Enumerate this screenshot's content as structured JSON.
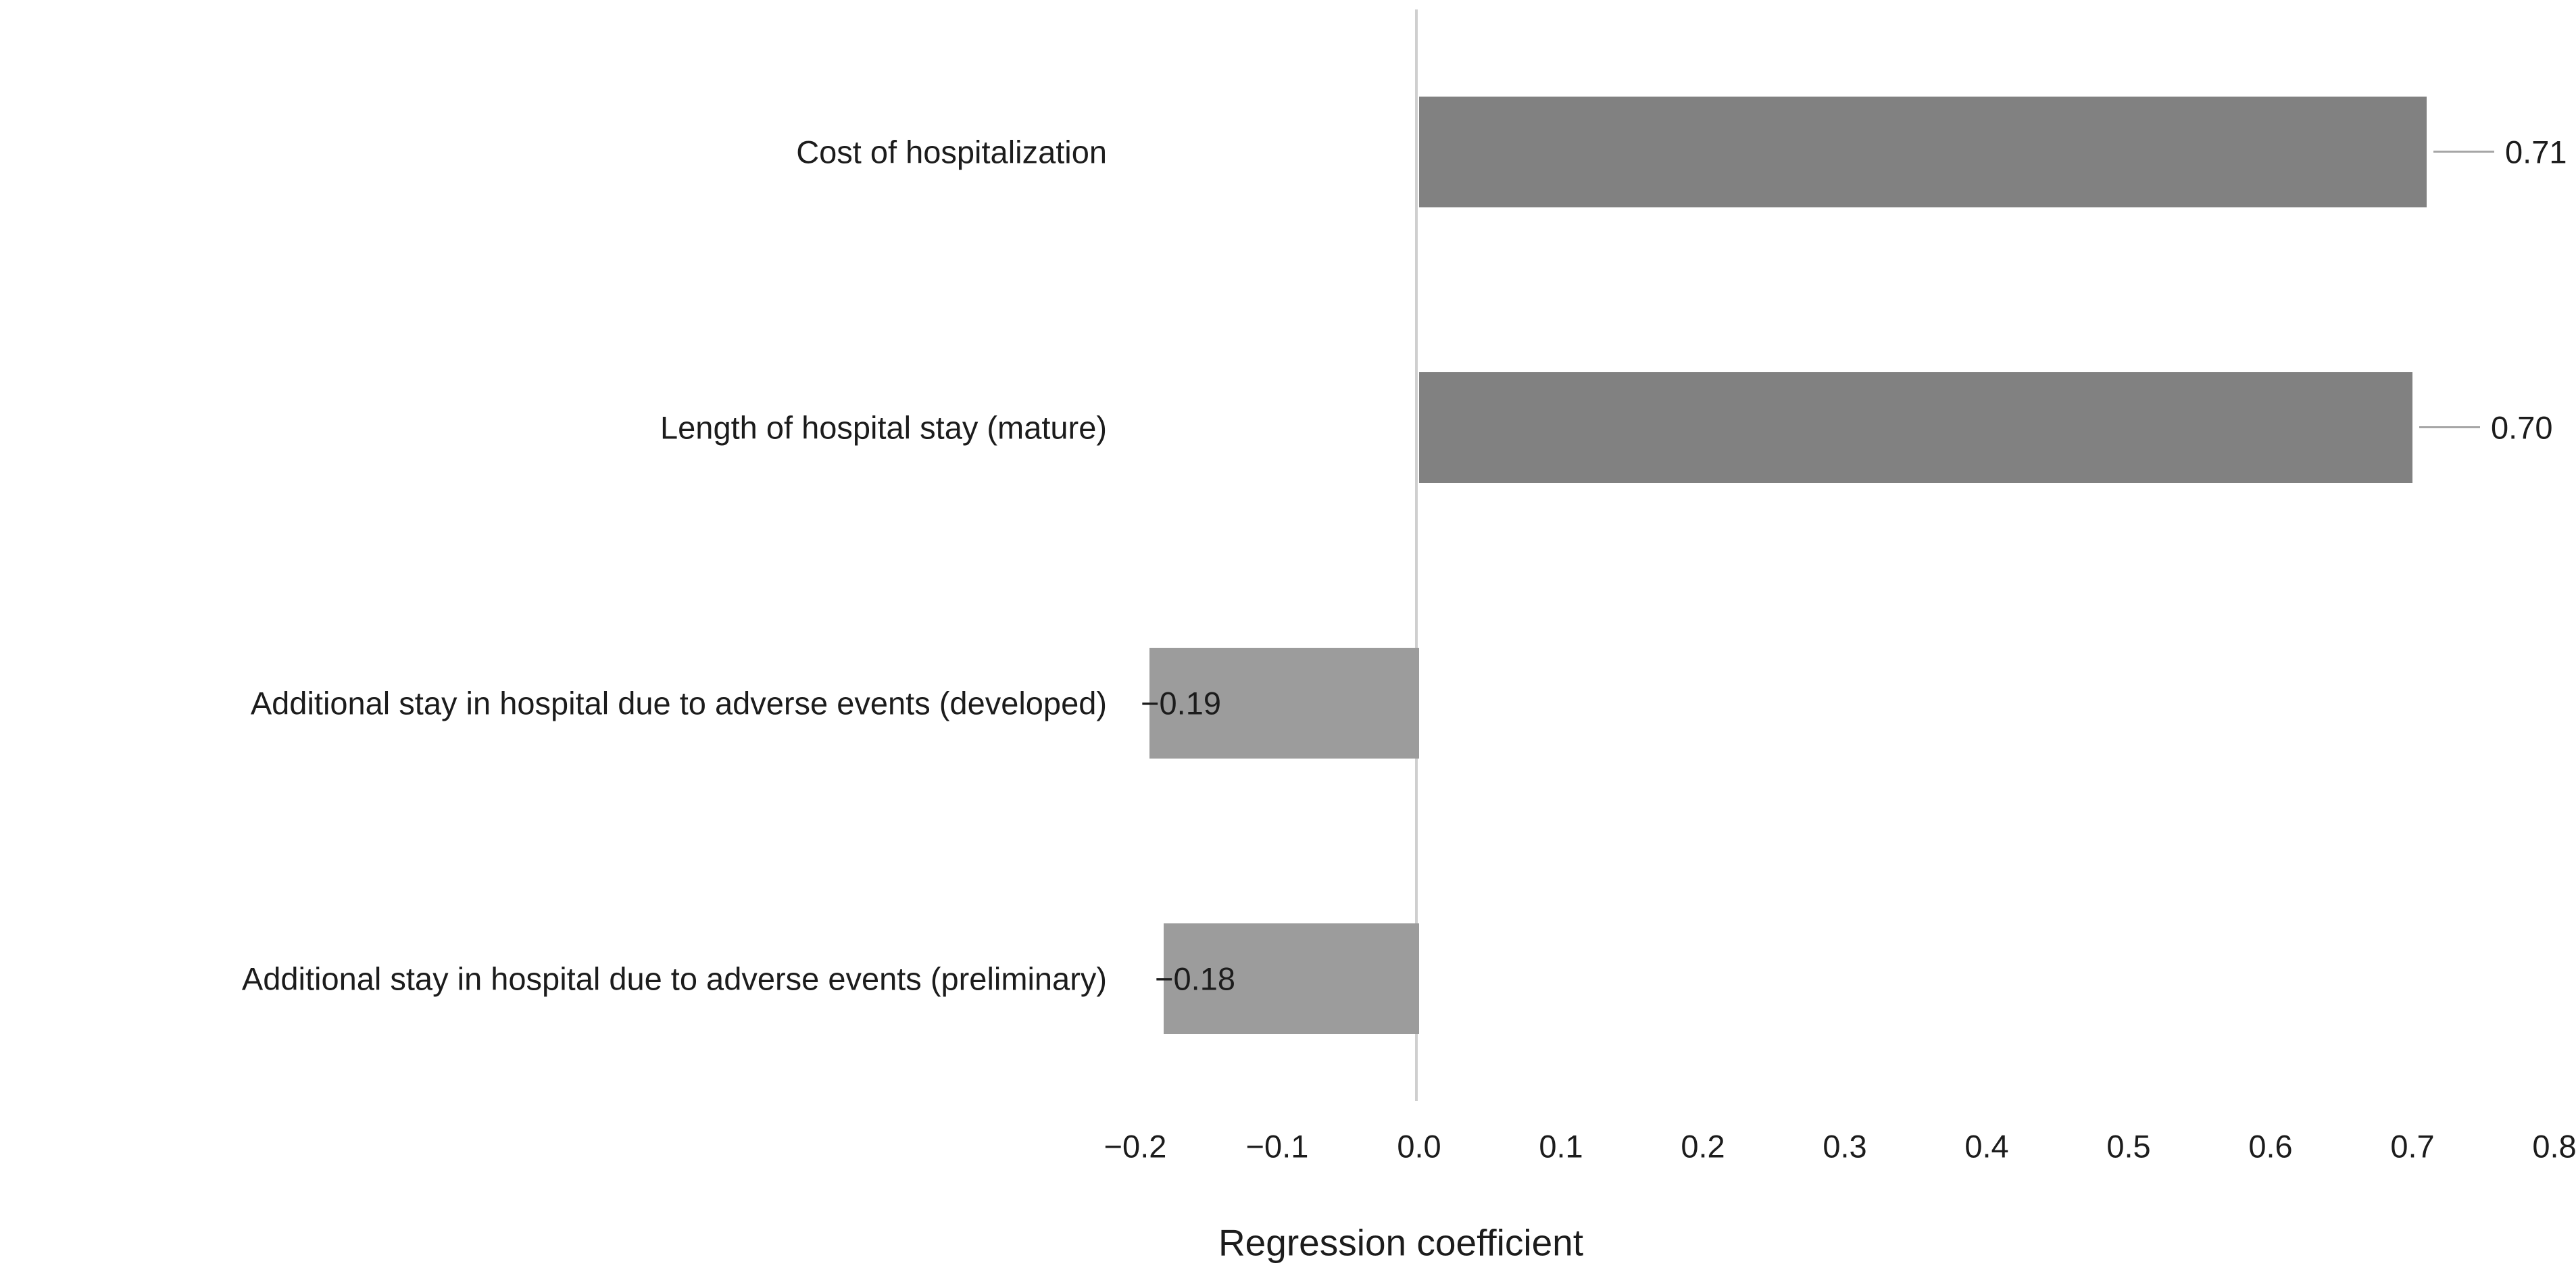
{
  "chart_data": {
    "type": "bar",
    "orientation": "horizontal",
    "title": "",
    "xlabel": "Regression coefficient",
    "ylabel": "",
    "categories": [
      "Cost of hospitalization",
      "Length of hospital stay (mature)",
      "Additional stay in hospital due to adverse events (developed)",
      "Additional stay in hospital due to adverse events (preliminary)"
    ],
    "values": [
      0.71,
      0.7,
      -0.19,
      -0.18
    ],
    "value_labels": [
      "0.71",
      "0.70",
      "−0.19",
      "−0.18"
    ],
    "xlim": [
      -0.2,
      0.8
    ],
    "x_tick_values": [
      -0.2,
      -0.1,
      0.0,
      0.1,
      0.2,
      0.3,
      0.4,
      0.5,
      0.6,
      0.7,
      0.8
    ],
    "x_tick_labels": [
      "−0.2",
      "−0.1",
      "0.0",
      "0.1",
      "0.2",
      "0.3",
      "0.4",
      "0.5",
      "0.6",
      "0.7",
      "0.8"
    ],
    "grid": false,
    "legend": false,
    "data_label_style": "positive bars: label right of bar with gray leader line; negative bars: label left of bar start",
    "colors": {
      "bar_positive": "#818181",
      "bar_negative": "#9c9c9c",
      "axis_line": "#cfcfcf",
      "leader_line": "#a6a6a6",
      "text": "#1c1c1c",
      "background": "#ffffff"
    }
  }
}
